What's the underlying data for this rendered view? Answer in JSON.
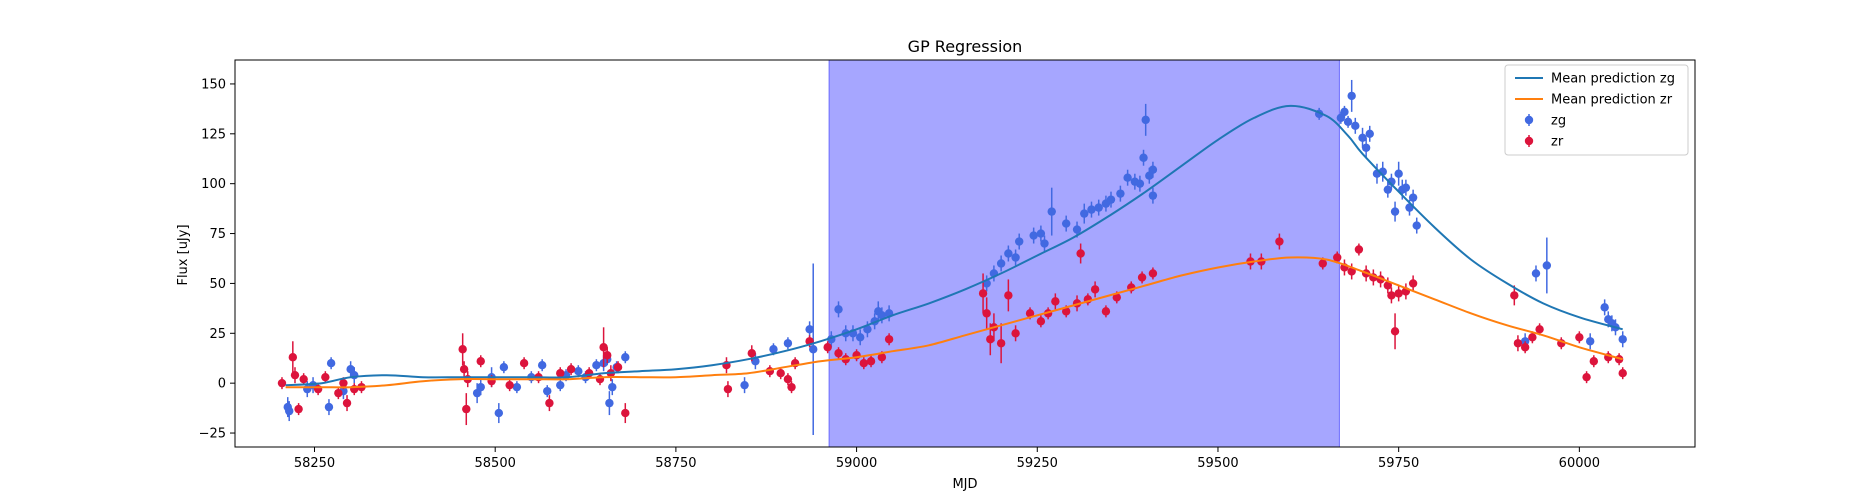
{
  "chart_data": {
    "type": "scatter",
    "title": "GP Regression",
    "xlabel": "MJD",
    "ylabel": "Flux [uJy]",
    "xlim": [
      58140,
      60160
    ],
    "ylim": [
      -32,
      162
    ],
    "xticks": [
      58250,
      58500,
      58750,
      59000,
      59250,
      59500,
      59750,
      60000
    ],
    "yticks": [
      -25,
      0,
      25,
      50,
      75,
      100,
      125,
      150
    ],
    "grid": false,
    "legend_position": "top-right",
    "shaded_region": {
      "x_start": 58962,
      "x_end": 59668,
      "color": "#a6a6ff"
    },
    "series": [
      {
        "name": "Mean prediction zg",
        "kind": "line",
        "color": "#1f77b4",
        "x": [
          58210,
          58260,
          58300,
          58350,
          58400,
          58450,
          58500,
          58550,
          58600,
          58650,
          58700,
          58750,
          58800,
          58850,
          58900,
          58950,
          59000,
          59050,
          59100,
          59150,
          59200,
          59250,
          59300,
          59350,
          59400,
          59450,
          59500,
          59550,
          59600,
          59650,
          59680,
          59700,
          59750,
          59800,
          59850,
          59900,
          59950,
          60000,
          60060
        ],
        "y": [
          -1,
          0,
          3,
          4,
          3,
          3,
          3,
          3,
          3,
          5,
          6,
          7,
          9,
          12,
          16,
          21,
          27,
          34,
          40,
          47,
          55,
          64,
          73,
          84,
          96,
          109,
          122,
          133,
          139,
          134,
          124,
          115,
          96,
          78,
          62,
          50,
          40,
          33,
          27
        ]
      },
      {
        "name": "Mean prediction zr",
        "kind": "line",
        "color": "#ff7f0e",
        "x": [
          58210,
          58260,
          58300,
          58350,
          58400,
          58450,
          58500,
          58550,
          58600,
          58650,
          58700,
          58750,
          58800,
          58850,
          58900,
          58950,
          59000,
          59050,
          59100,
          59150,
          59200,
          59250,
          59300,
          59350,
          59400,
          59450,
          59500,
          59550,
          59600,
          59650,
          59700,
          59750,
          59800,
          59850,
          59900,
          59950,
          60000,
          60060
        ],
        "y": [
          -2,
          -2,
          -2,
          -1,
          1,
          2,
          2,
          2,
          2,
          3,
          3,
          3,
          4,
          5,
          8,
          11,
          13,
          16,
          19,
          24,
          29,
          34,
          39,
          44,
          49,
          54,
          58,
          61,
          63,
          62,
          56,
          49,
          42,
          35,
          29,
          24,
          18,
          12
        ]
      },
      {
        "name": "zg",
        "kind": "errorbar",
        "color": "#4169e1",
        "points": [
          [
            58213,
            -12,
            5
          ],
          [
            58215,
            -14,
            5
          ],
          [
            58240,
            -3,
            4
          ],
          [
            58248,
            -1,
            4
          ],
          [
            58270,
            -12,
            4
          ],
          [
            58273,
            10,
            3
          ],
          [
            58290,
            -4,
            4
          ],
          [
            58300,
            7,
            4
          ],
          [
            58305,
            4,
            4
          ],
          [
            58475,
            -5,
            5
          ],
          [
            58480,
            -2,
            4
          ],
          [
            58495,
            3,
            5
          ],
          [
            58505,
            -15,
            5
          ],
          [
            58512,
            8,
            3
          ],
          [
            58530,
            -2,
            3
          ],
          [
            58550,
            3,
            3
          ],
          [
            58565,
            9,
            3
          ],
          [
            58572,
            -4,
            3
          ],
          [
            58590,
            -1,
            3
          ],
          [
            58598,
            4,
            3
          ],
          [
            58615,
            6,
            3
          ],
          [
            58625,
            3,
            3
          ],
          [
            58640,
            9,
            3
          ],
          [
            58650,
            10,
            4
          ],
          [
            58655,
            12,
            3
          ],
          [
            58658,
            -10,
            6
          ],
          [
            58662,
            -2,
            4
          ],
          [
            58668,
            8,
            3
          ],
          [
            58680,
            13,
            3
          ],
          [
            58845,
            -1,
            4
          ],
          [
            58860,
            11,
            4
          ],
          [
            58885,
            17,
            3
          ],
          [
            58905,
            20,
            3
          ],
          [
            58935,
            27,
            4
          ],
          [
            58940,
            17,
            43
          ],
          [
            58965,
            22,
            4
          ],
          [
            58975,
            37,
            4
          ],
          [
            58985,
            25,
            4
          ],
          [
            58995,
            25,
            4
          ],
          [
            59005,
            23,
            4
          ],
          [
            59015,
            27,
            4
          ],
          [
            59025,
            31,
            4
          ],
          [
            59030,
            36,
            5
          ],
          [
            59035,
            34,
            4
          ],
          [
            59045,
            35,
            4
          ],
          [
            59180,
            50,
            4
          ],
          [
            59190,
            55,
            4
          ],
          [
            59200,
            60,
            4
          ],
          [
            59210,
            65,
            4
          ],
          [
            59220,
            63,
            4
          ],
          [
            59225,
            71,
            4
          ],
          [
            59245,
            74,
            4
          ],
          [
            59255,
            75,
            4
          ],
          [
            59260,
            70,
            4
          ],
          [
            59270,
            86,
            12
          ],
          [
            59290,
            80,
            4
          ],
          [
            59305,
            77,
            4
          ],
          [
            59315,
            85,
            5
          ],
          [
            59325,
            87,
            4
          ],
          [
            59335,
            88,
            4
          ],
          [
            59345,
            90,
            4
          ],
          [
            59352,
            92,
            4
          ],
          [
            59365,
            95,
            4
          ],
          [
            59375,
            103,
            4
          ],
          [
            59385,
            101,
            4
          ],
          [
            59392,
            100,
            4
          ],
          [
            59397,
            113,
            4
          ],
          [
            59400,
            132,
            8
          ],
          [
            59405,
            104,
            4
          ],
          [
            59410,
            94,
            4
          ],
          [
            59410,
            107,
            4
          ],
          [
            59640,
            135,
            3
          ],
          [
            59670,
            133,
            3
          ],
          [
            59675,
            136,
            3
          ],
          [
            59680,
            131,
            3
          ],
          [
            59685,
            144,
            8
          ],
          [
            59690,
            129,
            4
          ],
          [
            59700,
            123,
            5
          ],
          [
            59705,
            118,
            5
          ],
          [
            59710,
            125,
            4
          ],
          [
            59720,
            105,
            5
          ],
          [
            59728,
            106,
            5
          ],
          [
            59735,
            97,
            4
          ],
          [
            59740,
            101,
            4
          ],
          [
            59745,
            86,
            5
          ],
          [
            59750,
            105,
            6
          ],
          [
            59755,
            97,
            5
          ],
          [
            59760,
            98,
            4
          ],
          [
            59765,
            88,
            4
          ],
          [
            59770,
            93,
            4
          ],
          [
            59775,
            79,
            4
          ],
          [
            59925,
            21,
            4
          ],
          [
            59940,
            55,
            4
          ],
          [
            59955,
            59,
            14
          ],
          [
            60015,
            21,
            4
          ],
          [
            60035,
            38,
            4
          ],
          [
            60040,
            32,
            4
          ],
          [
            60045,
            30,
            4
          ],
          [
            60050,
            28,
            4
          ],
          [
            60060,
            22,
            4
          ]
        ]
      },
      {
        "name": "zr",
        "kind": "errorbar",
        "color": "#dc143c",
        "points": [
          [
            58205,
            0,
            3
          ],
          [
            58220,
            13,
            8
          ],
          [
            58223,
            4,
            4
          ],
          [
            58228,
            -13,
            3
          ],
          [
            58235,
            2,
            3
          ],
          [
            58255,
            -3,
            3
          ],
          [
            58265,
            3,
            3
          ],
          [
            58283,
            -5,
            3
          ],
          [
            58290,
            0,
            3
          ],
          [
            58295,
            -10,
            4
          ],
          [
            58305,
            -3,
            3
          ],
          [
            58315,
            -2,
            3
          ],
          [
            58455,
            17,
            8
          ],
          [
            58457,
            7,
            4
          ],
          [
            58460,
            -13,
            8
          ],
          [
            58462,
            2,
            4
          ],
          [
            58480,
            11,
            3
          ],
          [
            58495,
            1,
            3
          ],
          [
            58520,
            -1,
            3
          ],
          [
            58540,
            10,
            3
          ],
          [
            58560,
            3,
            3
          ],
          [
            58575,
            -10,
            4
          ],
          [
            58590,
            5,
            3
          ],
          [
            58605,
            7,
            3
          ],
          [
            58630,
            5,
            3
          ],
          [
            58645,
            2,
            3
          ],
          [
            58650,
            18,
            10
          ],
          [
            58655,
            14,
            4
          ],
          [
            58660,
            5,
            4
          ],
          [
            58670,
            8,
            3
          ],
          [
            58680,
            -15,
            5
          ],
          [
            58820,
            9,
            4
          ],
          [
            58822,
            -3,
            4
          ],
          [
            58855,
            15,
            4
          ],
          [
            58880,
            6,
            3
          ],
          [
            58895,
            5,
            3
          ],
          [
            58905,
            2,
            3
          ],
          [
            58910,
            -2,
            3
          ],
          [
            58915,
            10,
            3
          ],
          [
            58935,
            21,
            3
          ],
          [
            58960,
            18,
            3
          ],
          [
            58975,
            15,
            3
          ],
          [
            58985,
            12,
            3
          ],
          [
            59000,
            14,
            3
          ],
          [
            59010,
            10,
            3
          ],
          [
            59020,
            11,
            3
          ],
          [
            59035,
            13,
            3
          ],
          [
            59045,
            22,
            3
          ],
          [
            59175,
            45,
            10
          ],
          [
            59180,
            35,
            8
          ],
          [
            59185,
            22,
            8
          ],
          [
            59190,
            28,
            7
          ],
          [
            59200,
            20,
            10
          ],
          [
            59210,
            44,
            8
          ],
          [
            59220,
            25,
            4
          ],
          [
            59240,
            35,
            3
          ],
          [
            59255,
            31,
            3
          ],
          [
            59265,
            35,
            3
          ],
          [
            59275,
            41,
            4
          ],
          [
            59290,
            36,
            3
          ],
          [
            59305,
            40,
            4
          ],
          [
            59310,
            65,
            5
          ],
          [
            59320,
            42,
            3
          ],
          [
            59330,
            47,
            4
          ],
          [
            59345,
            36,
            3
          ],
          [
            59360,
            43,
            3
          ],
          [
            59380,
            48,
            3
          ],
          [
            59395,
            53,
            3
          ],
          [
            59410,
            55,
            3
          ],
          [
            59545,
            61,
            4
          ],
          [
            59560,
            61,
            4
          ],
          [
            59585,
            71,
            4
          ],
          [
            59645,
            60,
            3
          ],
          [
            59665,
            63,
            3
          ],
          [
            59675,
            58,
            4
          ],
          [
            59685,
            56,
            4
          ],
          [
            59695,
            67,
            3
          ],
          [
            59705,
            55,
            4
          ],
          [
            59715,
            53,
            4
          ],
          [
            59725,
            52,
            4
          ],
          [
            59735,
            49,
            4
          ],
          [
            59740,
            44,
            4
          ],
          [
            59745,
            26,
            9
          ],
          [
            59750,
            45,
            4
          ],
          [
            59760,
            46,
            4
          ],
          [
            59770,
            50,
            4
          ],
          [
            59910,
            44,
            5
          ],
          [
            59915,
            20,
            4
          ],
          [
            59925,
            18,
            3
          ],
          [
            59935,
            23,
            3
          ],
          [
            59945,
            27,
            3
          ],
          [
            59975,
            20,
            3
          ],
          [
            60000,
            23,
            3
          ],
          [
            60010,
            3,
            3
          ],
          [
            60020,
            11,
            3
          ],
          [
            60040,
            13,
            3
          ],
          [
            60055,
            12,
            3
          ],
          [
            60060,
            5,
            3
          ]
        ]
      }
    ]
  }
}
